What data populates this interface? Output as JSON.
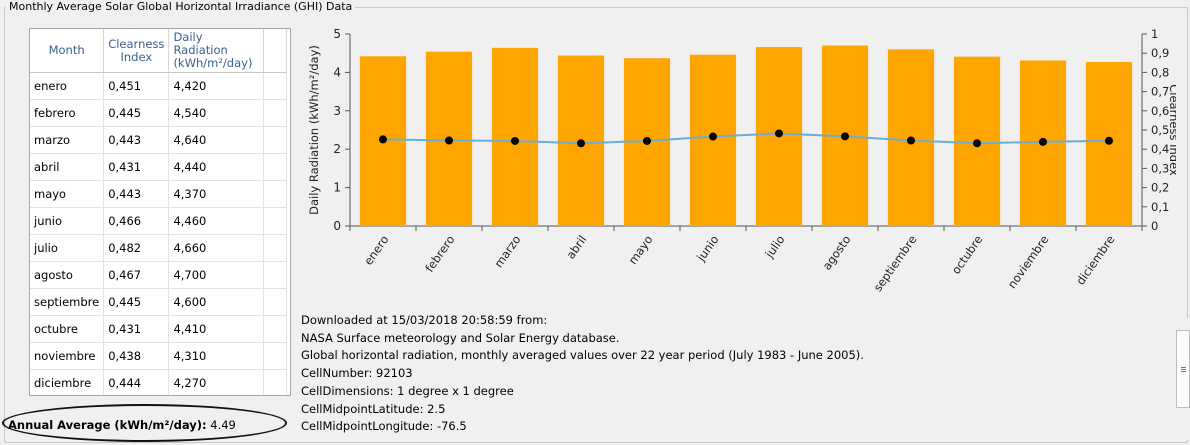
{
  "group_title": "Monthly Average Solar Global Horizontal Irradiance (GHI) Data",
  "table": {
    "headers": [
      {
        "line1": "Month",
        "line2": ""
      },
      {
        "line1": "Clearness",
        "line2": "Index"
      },
      {
        "line1": "Daily Radiation",
        "line2": "(kWh/m²/day)"
      }
    ],
    "rows": [
      {
        "month": "enero",
        "ci": "0,451",
        "rad": "4,420"
      },
      {
        "month": "febrero",
        "ci": "0,445",
        "rad": "4,540"
      },
      {
        "month": "marzo",
        "ci": "0,443",
        "rad": "4,640"
      },
      {
        "month": "abril",
        "ci": "0,431",
        "rad": "4,440"
      },
      {
        "month": "mayo",
        "ci": "0,443",
        "rad": "4,370"
      },
      {
        "month": "junio",
        "ci": "0,466",
        "rad": "4,460"
      },
      {
        "month": "julio",
        "ci": "0,482",
        "rad": "4,660"
      },
      {
        "month": "agosto",
        "ci": "0,467",
        "rad": "4,700"
      },
      {
        "month": "septiembre",
        "ci": "0,445",
        "rad": "4,600"
      },
      {
        "month": "octubre",
        "ci": "0,431",
        "rad": "4,410"
      },
      {
        "month": "noviembre",
        "ci": "0,438",
        "rad": "4,310"
      },
      {
        "month": "diciembre",
        "ci": "0,444",
        "rad": "4,270"
      }
    ]
  },
  "annual": {
    "label": "Annual Average (kWh/m²/day):",
    "value": "4.49"
  },
  "info_lines": [
    "Downloaded at 15/03/2018 20:58:59 from:",
    "NASA Surface meteorology and Solar Energy database.",
    "Global horizontal radiation, monthly averaged values over 22 year period (July 1983 - June 2005).",
    "CellNumber: 92103",
    "CellDimensions: 1 degree x 1 degree",
    "CellMidpointLatitude: 2.5",
    "CellMidpointLongitude: -76.5"
  ],
  "colors": {
    "bar": "#ffa500",
    "line": "#6aaed6",
    "point": "#000000"
  },
  "chart_data": {
    "type": "bar",
    "categories": [
      "enero",
      "febrero",
      "marzo",
      "abril",
      "mayo",
      "junio",
      "julio",
      "agosto",
      "septiembre",
      "octubre",
      "noviembre",
      "diciembre"
    ],
    "series": [
      {
        "name": "",
        "type": "bar",
        "axis": "left",
        "values": [
          4.42,
          4.54,
          4.64,
          4.44,
          4.37,
          4.46,
          4.66,
          4.7,
          4.6,
          4.41,
          4.31,
          4.27
        ]
      },
      {
        "name": "",
        "type": "line",
        "axis": "right",
        "values": [
          0.451,
          0.445,
          0.443,
          0.431,
          0.443,
          0.466,
          0.482,
          0.467,
          0.445,
          0.431,
          0.438,
          0.444
        ]
      }
    ],
    "ylabel": "Daily Radiation (kWh/m²/day)",
    "y2label": "Clearness Index",
    "ylim": [
      0,
      5
    ],
    "y2lim": [
      0,
      1
    ],
    "yticks": [
      "0",
      "1",
      "2",
      "3",
      "4",
      "5"
    ],
    "y2ticks": [
      "0",
      "0,1",
      "0,2",
      "0,3",
      "0,4",
      "0,5",
      "0,6",
      "0,7",
      "0,8",
      "0,9",
      "1"
    ]
  }
}
